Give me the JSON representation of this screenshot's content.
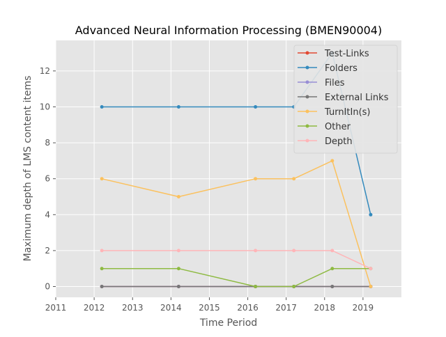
{
  "chart_data": {
    "type": "line",
    "title": "Advanced Neural Information Processing (BMEN90004)",
    "xlabel": "Time Period",
    "ylabel": "Maximum depth of LMS content items",
    "x_ticks": [
      "2011",
      "2012",
      "2013",
      "2014",
      "2015",
      "2016",
      "2017",
      "2018",
      "2019"
    ],
    "y_ticks": [
      "0",
      "2",
      "4",
      "6",
      "8",
      "10",
      "12"
    ],
    "xlim": [
      2011,
      2020
    ],
    "ylim": [
      -0.6,
      13.7
    ],
    "grid": true,
    "legend_position": "top-right",
    "x": [
      2012.2,
      2014.2,
      2016.2,
      2017.2,
      2018.2,
      2019.2
    ],
    "series": [
      {
        "name": "Test-Links",
        "color": "#E24A33",
        "values": [
          0,
          0,
          0,
          0,
          0,
          0
        ]
      },
      {
        "name": "Folders",
        "color": "#348ABD",
        "values": [
          10,
          10,
          10,
          10,
          13,
          4
        ]
      },
      {
        "name": "Files",
        "color": "#988ED5",
        "values": [
          0,
          0,
          0,
          0,
          0,
          0
        ]
      },
      {
        "name": "External Links",
        "color": "#777777",
        "values": [
          0,
          0,
          0,
          0,
          0,
          0
        ]
      },
      {
        "name": "TurnItIn(s)",
        "color": "#FBC15E",
        "values": [
          6,
          5,
          6,
          6,
          7,
          0
        ]
      },
      {
        "name": "Other",
        "color": "#8EBA42",
        "values": [
          1,
          1,
          0,
          0,
          1,
          1
        ]
      },
      {
        "name": "Depth",
        "color": "#FFB5B8",
        "values": [
          2,
          2,
          2,
          2,
          2,
          1
        ]
      }
    ]
  }
}
